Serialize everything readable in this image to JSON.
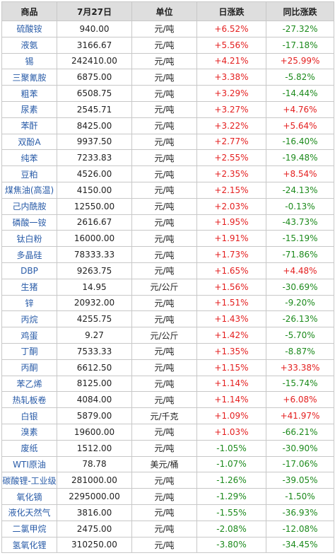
{
  "header": {
    "col_name": "商品",
    "col_price": "7月27日",
    "col_unit": "单位",
    "col_daily": "日涨跌",
    "col_yoy": "同比涨跌"
  },
  "rows": [
    {
      "name": "硫酸铵",
      "price": "940.00",
      "unit": "元/吨",
      "daily": "+6.52%",
      "yoy": "-27.32%"
    },
    {
      "name": "液氨",
      "price": "3166.67",
      "unit": "元/吨",
      "daily": "+5.56%",
      "yoy": "-17.18%"
    },
    {
      "name": "锡",
      "price": "242410.00",
      "unit": "元/吨",
      "daily": "+4.21%",
      "yoy": "+25.99%"
    },
    {
      "name": "三聚氰胺",
      "price": "6875.00",
      "unit": "元/吨",
      "daily": "+3.38%",
      "yoy": "-5.82%"
    },
    {
      "name": "粗苯",
      "price": "6508.75",
      "unit": "元/吨",
      "daily": "+3.29%",
      "yoy": "-14.44%"
    },
    {
      "name": "尿素",
      "price": "2545.71",
      "unit": "元/吨",
      "daily": "+3.27%",
      "yoy": "+4.76%"
    },
    {
      "name": "苯酐",
      "price": "8425.00",
      "unit": "元/吨",
      "daily": "+3.22%",
      "yoy": "+5.64%"
    },
    {
      "name": "双酚A",
      "price": "9937.50",
      "unit": "元/吨",
      "daily": "+2.77%",
      "yoy": "-16.40%"
    },
    {
      "name": "纯苯",
      "price": "7233.83",
      "unit": "元/吨",
      "daily": "+2.55%",
      "yoy": "-19.48%"
    },
    {
      "name": "豆粕",
      "price": "4526.00",
      "unit": "元/吨",
      "daily": "+2.35%",
      "yoy": "+8.54%"
    },
    {
      "name": "煤焦油(高温)",
      "price": "4150.00",
      "unit": "元/吨",
      "daily": "+2.15%",
      "yoy": "-24.13%"
    },
    {
      "name": "己内酰胺",
      "price": "12550.00",
      "unit": "元/吨",
      "daily": "+2.03%",
      "yoy": "-0.13%"
    },
    {
      "name": "磷酸一铵",
      "price": "2616.67",
      "unit": "元/吨",
      "daily": "+1.95%",
      "yoy": "-43.73%"
    },
    {
      "name": "钛白粉",
      "price": "16000.00",
      "unit": "元/吨",
      "daily": "+1.91%",
      "yoy": "-15.19%"
    },
    {
      "name": "多晶硅",
      "price": "78333.33",
      "unit": "元/吨",
      "daily": "+1.73%",
      "yoy": "-71.86%"
    },
    {
      "name": "DBP",
      "price": "9263.75",
      "unit": "元/吨",
      "daily": "+1.65%",
      "yoy": "+4.48%"
    },
    {
      "name": "生猪",
      "price": "14.95",
      "unit": "元/公斤",
      "daily": "+1.56%",
      "yoy": "-30.69%"
    },
    {
      "name": "锌",
      "price": "20932.00",
      "unit": "元/吨",
      "daily": "+1.51%",
      "yoy": "-9.20%"
    },
    {
      "name": "丙烷",
      "price": "4255.75",
      "unit": "元/吨",
      "daily": "+1.43%",
      "yoy": "-26.13%"
    },
    {
      "name": "鸡蛋",
      "price": "9.27",
      "unit": "元/公斤",
      "daily": "+1.42%",
      "yoy": "-5.70%"
    },
    {
      "name": "丁酮",
      "price": "7533.33",
      "unit": "元/吨",
      "daily": "+1.35%",
      "yoy": "-8.87%"
    },
    {
      "name": "丙酮",
      "price": "6612.50",
      "unit": "元/吨",
      "daily": "+1.15%",
      "yoy": "+33.38%"
    },
    {
      "name": "苯乙烯",
      "price": "8125.00",
      "unit": "元/吨",
      "daily": "+1.14%",
      "yoy": "-15.74%"
    },
    {
      "name": "热轧板卷",
      "price": "4084.00",
      "unit": "元/吨",
      "daily": "+1.14%",
      "yoy": "+6.08%"
    },
    {
      "name": "白银",
      "price": "5879.00",
      "unit": "元/千克",
      "daily": "+1.09%",
      "yoy": "+41.97%"
    },
    {
      "name": "溴素",
      "price": "19600.00",
      "unit": "元/吨",
      "daily": "+1.03%",
      "yoy": "-66.21%"
    },
    {
      "name": "废纸",
      "price": "1512.00",
      "unit": "元/吨",
      "daily": "-1.05%",
      "yoy": "-30.90%"
    },
    {
      "name": "WTI原油",
      "price": "78.78",
      "unit": "美元/桶",
      "daily": "-1.07%",
      "yoy": "-17.06%"
    },
    {
      "name": "碳酸锂-工业级",
      "price": "281000.00",
      "unit": "元/吨",
      "daily": "-1.26%",
      "yoy": "-39.05%"
    },
    {
      "name": "氧化镝",
      "price": "2295000.00",
      "unit": "元/吨",
      "daily": "-1.29%",
      "yoy": "-1.50%"
    },
    {
      "name": "液化天然气",
      "price": "3816.00",
      "unit": "元/吨",
      "daily": "-1.55%",
      "yoy": "-36.93%"
    },
    {
      "name": "二氯甲烷",
      "price": "2475.00",
      "unit": "元/吨",
      "daily": "-2.08%",
      "yoy": "-12.08%"
    },
    {
      "name": "氢氧化锂",
      "price": "310250.00",
      "unit": "元/吨",
      "daily": "-3.80%",
      "yoy": "-34.45%"
    }
  ],
  "colors": {
    "header_bg": "#dedede",
    "name_text": "#2a5ca8",
    "up": "#e41f1f",
    "down": "#1c8a1c",
    "border": "#c8c8c8"
  }
}
